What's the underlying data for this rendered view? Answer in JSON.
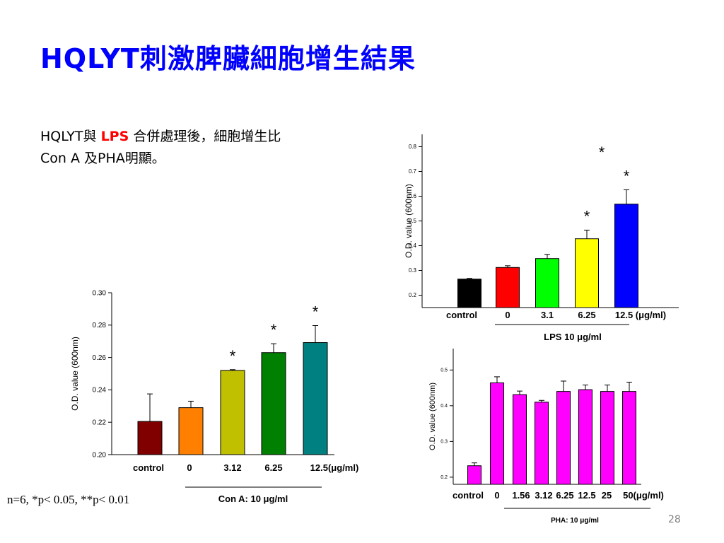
{
  "slide": {
    "title": "HQLYT刺激脾臟細胞增生結果",
    "line1_prefix": "HQLYT與",
    "line1_highlight": "LPS",
    "line1_suffix": "合併處理後，細胞增生比",
    "line2": "Con A 及PHA明顯。",
    "footnote": "n=6,  *p< 0.05, **p< 0.01",
    "page_number": "28"
  },
  "chart_data": [
    {
      "id": "lps",
      "type": "bar",
      "ylabel": "O.D. value (600nm)",
      "ylim": [
        0.15,
        0.85
      ],
      "yticks": [
        "0.2",
        "0.3",
        "0.4",
        "0.5",
        "0.6",
        "0.7",
        "0.8"
      ],
      "categories": [
        "control",
        "0",
        "3.1",
        "6.25",
        "12.5 (μg/ml)"
      ],
      "values": [
        0.265,
        0.312,
        0.348,
        0.428,
        0.568
      ],
      "errors": [
        0.003,
        0.007,
        0.017,
        0.035,
        0.058
      ],
      "colors": [
        "#000000",
        "#ff0000",
        "#00ff00",
        "#ffff00",
        "#0000ff"
      ],
      "significance": [
        "",
        "",
        "",
        "*",
        "*"
      ],
      "group_label": "LPS 10 μg/ml",
      "extra_marks": [
        "*"
      ]
    },
    {
      "id": "cona",
      "type": "bar",
      "ylabel": "O.D. value (600nm)",
      "ylim": [
        0.2,
        0.3
      ],
      "yticks": [
        "0.20",
        "0.22",
        "0.24",
        "0.26",
        "0.28",
        "0.30"
      ],
      "categories": [
        "control",
        "0",
        "3.12",
        "6.25",
        "12.5(μg/ml)"
      ],
      "values": [
        0.2205,
        0.229,
        0.252,
        0.263,
        0.2692
      ],
      "errors": [
        0.017,
        0.004,
        0.0005,
        0.0055,
        0.0105
      ],
      "colors": [
        "#800000",
        "#ff8000",
        "#c0c000",
        "#008000",
        "#008080"
      ],
      "significance": [
        "",
        "",
        "*",
        "*",
        "*"
      ],
      "group_label": "Con A: 10 μg/ml"
    },
    {
      "id": "pha",
      "type": "bar",
      "ylabel": "O.D. value (600nm)",
      "ylim": [
        0.18,
        0.56
      ],
      "yticks": [
        "0.2",
        "0.3",
        "0.4",
        "0.5"
      ],
      "categories": [
        "control",
        "0",
        "1.56",
        "3.12",
        "6.25",
        "12.5",
        "25",
        "50(μg/ml)"
      ],
      "values": [
        0.232,
        0.464,
        0.431,
        0.41,
        0.44,
        0.445,
        0.44,
        0.44
      ],
      "errors": [
        0.008,
        0.017,
        0.01,
        0.005,
        0.029,
        0.013,
        0.018,
        0.026
      ],
      "colors": [
        "#ff00ff",
        "#ff00ff",
        "#ff00ff",
        "#ff00ff",
        "#ff00ff",
        "#ff00ff",
        "#ff00ff",
        "#ff00ff"
      ],
      "significance": [
        "",
        "",
        "",
        "",
        "",
        "",
        "",
        ""
      ],
      "group_label": "PHA: 10 μg/ml"
    }
  ]
}
